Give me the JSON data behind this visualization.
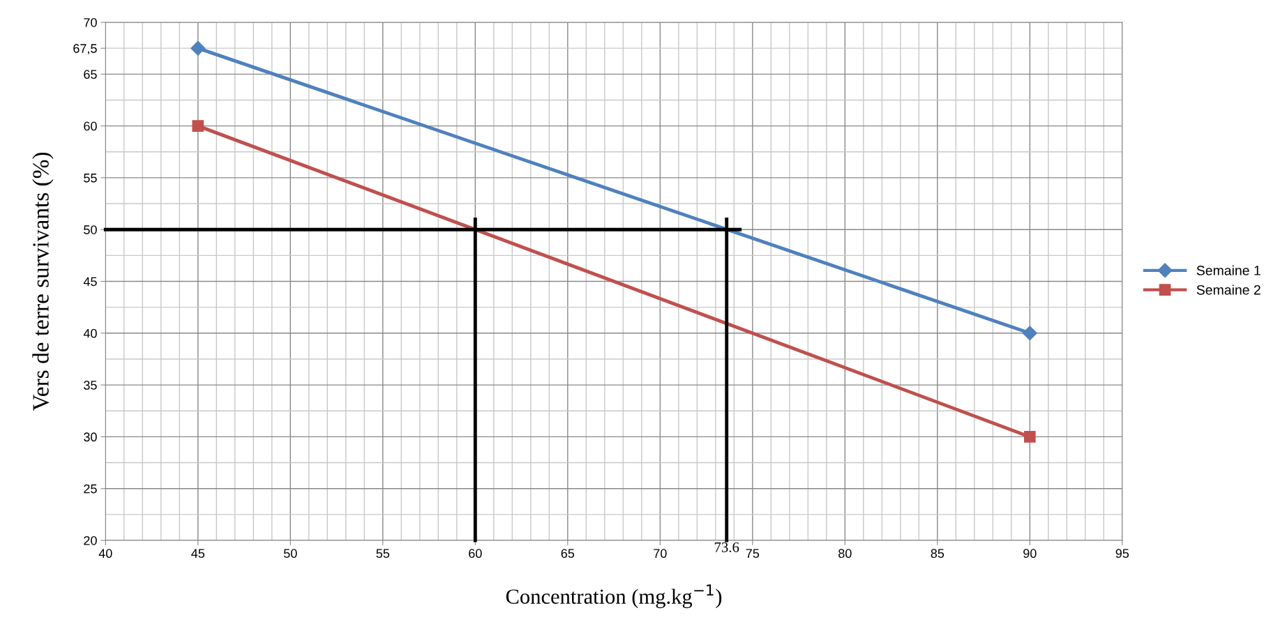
{
  "chart_data": {
    "type": "line",
    "xlabel": "Concentration (mg.kg$^{−1}$)",
    "ylabel": "Vers de terre survivants (%)",
    "x": [
      45,
      90
    ],
    "series": [
      {
        "name": "Semaine 1",
        "color": "#4f81bd",
        "marker": "diamond",
        "values": [
          67.5,
          40
        ]
      },
      {
        "name": "Semaine 2",
        "color": "#c0504d",
        "marker": "square",
        "values": [
          60,
          30
        ]
      }
    ],
    "xlim": [
      40,
      95
    ],
    "xticks": [
      40,
      45,
      50,
      55,
      60,
      65,
      70,
      75,
      80,
      85,
      90,
      95
    ],
    "ylim": [
      20,
      70
    ],
    "yticks": [
      20,
      25,
      30,
      35,
      40,
      45,
      50,
      55,
      60,
      65,
      {
        "value": 67.5,
        "label": "67,5"
      },
      70
    ],
    "grid": true,
    "legend": "right",
    "line_style": "solid",
    "ref_lines": [
      {
        "axis": "y",
        "value": 50,
        "label": null,
        "color": "#000000"
      },
      {
        "axis": "x",
        "value": 60,
        "label": null,
        "color": "#000000"
      },
      {
        "axis": "x",
        "value": 73.6,
        "label": "73.6",
        "color": "#000000"
      }
    ]
  }
}
